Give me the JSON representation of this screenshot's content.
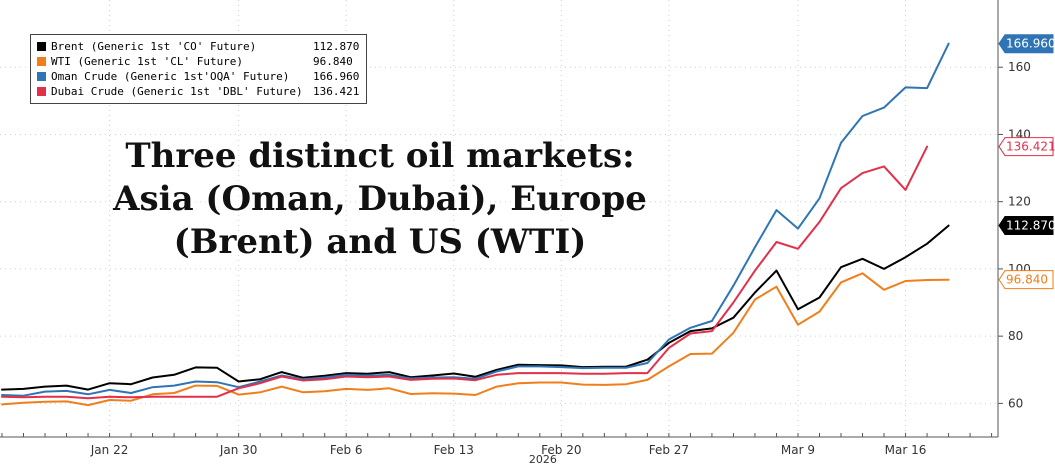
{
  "chart_data": {
    "type": "line",
    "title": "",
    "xlabel": "2026",
    "ylabel": "",
    "ylim": [
      50,
      180
    ],
    "y_ticks": [
      60,
      80,
      100,
      120,
      140,
      160
    ],
    "grid": true,
    "legend_position": "top-left",
    "x_ticks": [
      {
        "label": "Jan 22",
        "index": 5
      },
      {
        "label": "Jan 30",
        "index": 11
      },
      {
        "label": "Feb 6",
        "index": 16
      },
      {
        "label": "Feb 13",
        "index": 21
      },
      {
        "label": "Feb 20",
        "index": 26
      },
      {
        "label": "Feb 27",
        "index": 31
      },
      {
        "label": "Mar 9",
        "index": 37
      },
      {
        "label": "Mar 16",
        "index": 42
      }
    ],
    "x_index_range": [
      0,
      46
    ],
    "series": [
      {
        "name": "Brent (Generic 1st 'CO' Future)",
        "color": "#000000",
        "last_value": "112.870",
        "values": [
          64.1,
          64.3,
          65.0,
          65.3,
          64.1,
          66.0,
          65.7,
          67.7,
          68.5,
          70.7,
          70.6,
          66.5,
          67.2,
          69.3,
          67.6,
          68.2,
          69.0,
          68.8,
          69.3,
          67.8,
          68.3,
          68.9,
          67.9,
          70.0,
          71.5,
          71.4,
          71.3,
          70.8,
          70.9,
          70.9,
          73.0,
          78.0,
          81.5,
          82.3,
          85.5,
          93.0,
          99.5,
          88.0,
          91.5,
          100.5,
          103.0,
          100.0,
          103.5,
          107.5,
          112.9
        ]
      },
      {
        "name": "WTI (Generic 1st 'CL' Future)",
        "color": "#f07f1b",
        "last_value": "96.840",
        "values": [
          59.7,
          60.2,
          60.5,
          60.6,
          59.5,
          61.0,
          60.8,
          62.7,
          63.1,
          65.3,
          65.2,
          62.6,
          63.3,
          65.0,
          63.3,
          63.6,
          64.3,
          64.0,
          64.5,
          62.8,
          63.0,
          62.9,
          62.5,
          65.0,
          66.0,
          66.2,
          66.2,
          65.6,
          65.5,
          65.7,
          67.0,
          71.0,
          74.7,
          74.8,
          81.0,
          90.9,
          94.7,
          83.4,
          87.3,
          96.0,
          98.7,
          93.8,
          96.4,
          96.7,
          96.8
        ]
      },
      {
        "name": "Oman Crude (Generic 1st'OQA' Future)",
        "color": "#2f75b5",
        "last_value": "166.960",
        "values": [
          62.5,
          62.3,
          63.5,
          63.7,
          62.7,
          64.0,
          63.1,
          64.8,
          65.3,
          66.5,
          66.3,
          64.8,
          66.5,
          68.3,
          67.2,
          67.7,
          68.5,
          68.2,
          68.5,
          67.4,
          67.7,
          67.8,
          67.3,
          69.5,
          71.0,
          71.0,
          70.8,
          70.5,
          70.6,
          70.6,
          72.0,
          79.0,
          82.5,
          84.5,
          95.0,
          106.5,
          117.5,
          112.0,
          121.0,
          137.5,
          145.5,
          148.0,
          154.0,
          153.8,
          167.0
        ]
      },
      {
        "name": "Dubai Crude (Generic 1st 'DBL' Future)",
        "color": "#e2304b",
        "last_value": "136.421",
        "values": [
          62.0,
          61.8,
          62.0,
          62.0,
          61.5,
          62.0,
          61.8,
          62.0,
          62.0,
          62.0,
          62.0,
          64.5,
          66.0,
          68.0,
          66.8,
          67.2,
          68.0,
          67.8,
          68.0,
          67.0,
          67.3,
          67.4,
          66.9,
          68.5,
          69.0,
          69.0,
          69.0,
          68.8,
          68.8,
          69.0,
          69.0,
          76.5,
          80.8,
          81.5,
          90.0,
          99.5,
          108.0,
          106.0,
          114.0,
          124.0,
          128.5,
          130.5,
          123.5,
          136.4
        ]
      }
    ]
  },
  "annotation": {
    "lines": [
      "Three distinct oil markets:",
      "Asia (Oman, Dubai), Europe",
      "(Brent) and US (WTI)"
    ]
  }
}
